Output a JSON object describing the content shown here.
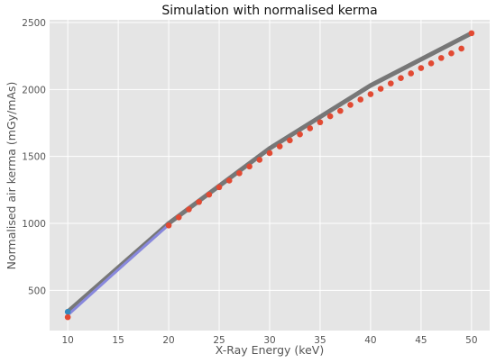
{
  "chart_data": {
    "type": "line",
    "title": "Simulation with normalised kerma",
    "xlabel": "X-Ray Energy (keV)",
    "ylabel": "Normalised air kerma (mGy/mAs)",
    "xlim": [
      8.2,
      51.8
    ],
    "ylim": [
      200,
      2520
    ],
    "xticks": [
      10,
      15,
      20,
      25,
      30,
      35,
      40,
      45,
      50
    ],
    "yticks": [
      500,
      1000,
      1500,
      2000,
      2500
    ],
    "grid": true,
    "series": [
      {
        "color": "#777777",
        "style": "line",
        "x": [
          10,
          20,
          30,
          40,
          50
        ],
        "y": [
          340,
          1000,
          1560,
          2030,
          2420
        ]
      },
      {
        "color": "#8888dd",
        "style": "line",
        "x": [
          10,
          15,
          20
        ],
        "y": [
          315,
          655,
          990
        ]
      },
      {
        "color": "#348abd",
        "style": "point",
        "x": [
          10
        ],
        "y": [
          340
        ]
      },
      {
        "color": "#e24a33",
        "style": "points",
        "x": [
          10,
          20,
          21,
          22,
          23,
          24,
          25,
          26,
          27,
          28,
          29,
          30,
          31,
          32,
          33,
          34,
          35,
          36,
          37,
          38,
          39,
          40,
          41,
          42,
          43,
          44,
          45,
          46,
          47,
          48,
          49,
          50
        ],
        "y": [
          300,
          985,
          1045,
          1105,
          1160,
          1215,
          1270,
          1320,
          1375,
          1425,
          1475,
          1525,
          1575,
          1620,
          1665,
          1710,
          1755,
          1800,
          1840,
          1885,
          1925,
          1965,
          2005,
          2045,
          2085,
          2120,
          2160,
          2195,
          2235,
          2270,
          2305,
          2420
        ]
      }
    ]
  }
}
